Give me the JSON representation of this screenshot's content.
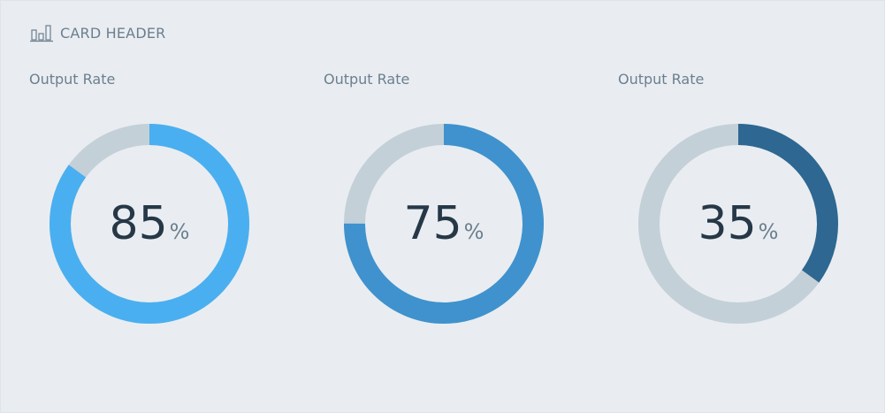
{
  "header": {
    "icon": "bar-chart-icon",
    "title": "CARD HEADER"
  },
  "track_color": "#c4d0d8",
  "gauges": [
    {
      "label": "Output Rate",
      "value": 85,
      "unit": "%",
      "color": "#4aaff0"
    },
    {
      "label": "Output Rate",
      "value": 75,
      "unit": "%",
      "color": "#3f92cd"
    },
    {
      "label": "Output Rate",
      "value": 35,
      "unit": "%",
      "color": "#2e6791"
    }
  ]
}
